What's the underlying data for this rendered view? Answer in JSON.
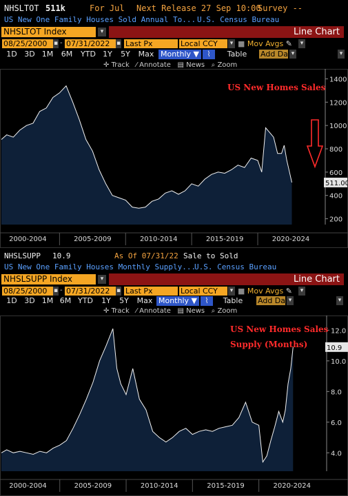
{
  "top": {
    "ticker": "NHSLTOT",
    "value": "511k",
    "for": "For Jul",
    "next_release": "Next Release 27 Sep 10:00",
    "survey": "Survey --",
    "description": "US New One Family Houses Sold Annual To...",
    "source": "U.S. Census Bureau",
    "index": "NHSLTOT Index",
    "chart_type": "Line Chart",
    "start_date": "08/25/2000",
    "end_date": "07/31/2022",
    "price_field": "Last Px",
    "currency": "Local CCY",
    "mov_avgs": "Mov Avgs",
    "range_buttons": [
      "1D",
      "3D",
      "1M",
      "6M",
      "YTD",
      "1Y",
      "5Y",
      "Max"
    ],
    "frequency": "Monthly",
    "table_label": "Table",
    "add_data": "Add Da",
    "tools": [
      "Track",
      "Annotate",
      "News",
      "Zoom"
    ]
  },
  "bottom": {
    "ticker": "NHSLSUPP",
    "value": "10.9",
    "as_of": "As Of 07/31/22",
    "sale": "Sale to Sold",
    "description": "US New One Family Houses Monthly Supply...",
    "source": "U.S. Census Bureau",
    "index": "NHSLSUPP Index",
    "chart_type": "Line Chart",
    "start_date": "08/25/2000",
    "end_date": "07/31/2022",
    "price_field": "Last Px",
    "currency": "Local CCY",
    "mov_avgs": "Mov Avgs",
    "range_buttons": [
      "1D",
      "3D",
      "1M",
      "6M",
      "YTD",
      "1Y",
      "5Y",
      "Max"
    ],
    "frequency": "Monthly",
    "table_label": "Table",
    "add_data": "Add Da",
    "tools": [
      "Track",
      "Annotate",
      "News",
      "Zoom"
    ]
  },
  "colors": {
    "accent_orange": "#f5a623",
    "header_red": "#8b1414",
    "selected_blue": "#2e56c8",
    "area_fill": "#0e2038",
    "annotation_red": "#ff2b2b"
  },
  "chart_data": [
    {
      "type": "area",
      "annotation": "US New Homes Sales",
      "last_value_label": "511.00",
      "x_ticks": [
        "2000-2004",
        "2005-2009",
        "2010-2014",
        "2015-2019",
        "2020-2024"
      ],
      "y_ticks": [
        "1400",
        "1200",
        "1000",
        "800",
        "600",
        "400",
        "200"
      ],
      "ylim": [
        150,
        1450
      ],
      "x": [
        2000.6,
        2001.0,
        2001.5,
        2002.0,
        2002.5,
        2003.0,
        2003.5,
        2004.0,
        2004.5,
        2005.0,
        2005.5,
        2006.0,
        2006.5,
        2007.0,
        2007.5,
        2008.0,
        2008.5,
        2009.0,
        2009.5,
        2010.0,
        2010.5,
        2011.0,
        2011.5,
        2012.0,
        2012.5,
        2013.0,
        2013.5,
        2014.0,
        2014.5,
        2015.0,
        2015.5,
        2016.0,
        2016.5,
        2017.0,
        2017.5,
        2018.0,
        2018.5,
        2019.0,
        2019.5,
        2020.0,
        2020.3,
        2020.6,
        2020.9,
        2021.2,
        2021.5,
        2021.8,
        2022.0,
        2022.2,
        2022.4,
        2022.58
      ],
      "values": [
        880,
        920,
        900,
        960,
        1000,
        1020,
        1120,
        1150,
        1240,
        1280,
        1340,
        1200,
        1050,
        880,
        780,
        620,
        500,
        400,
        380,
        360,
        300,
        290,
        300,
        350,
        370,
        420,
        440,
        410,
        440,
        500,
        480,
        540,
        580,
        600,
        590,
        620,
        660,
        640,
        720,
        700,
        600,
        980,
        940,
        900,
        760,
        760,
        830,
        700,
        600,
        511
      ]
    },
    {
      "type": "area",
      "annotation": [
        "US New Homes Sales",
        "Supply (Months)"
      ],
      "last_value_label": "10.9",
      "x_ticks": [
        "2000-2004",
        "2005-2009",
        "2010-2014",
        "2015-2019",
        "2020-2024"
      ],
      "y_ticks": [
        "12.0",
        "10.0",
        "8.0",
        "6.0",
        "4.0"
      ],
      "ylim": [
        2.8,
        12.6
      ],
      "x": [
        2000.6,
        2001.0,
        2001.5,
        2002.0,
        2002.5,
        2003.0,
        2003.5,
        2004.0,
        2004.5,
        2005.0,
        2005.5,
        2006.0,
        2006.5,
        2007.0,
        2007.5,
        2008.0,
        2008.5,
        2009.0,
        2009.3,
        2009.6,
        2010.0,
        2010.5,
        2011.0,
        2011.5,
        2012.0,
        2012.5,
        2013.0,
        2013.5,
        2014.0,
        2014.5,
        2015.0,
        2015.5,
        2016.0,
        2016.5,
        2017.0,
        2017.5,
        2018.0,
        2018.5,
        2019.0,
        2019.5,
        2020.0,
        2020.3,
        2020.6,
        2020.9,
        2021.2,
        2021.5,
        2021.8,
        2022.0,
        2022.2,
        2022.4,
        2022.58
      ],
      "values": [
        4.0,
        4.2,
        4.0,
        4.1,
        4.0,
        3.9,
        4.1,
        4.0,
        4.3,
        4.5,
        4.8,
        5.6,
        6.5,
        7.5,
        8.6,
        10.0,
        11.0,
        12.1,
        9.5,
        8.5,
        7.8,
        9.5,
        7.5,
        6.8,
        5.4,
        5.0,
        4.7,
        5.0,
        5.4,
        5.6,
        5.2,
        5.4,
        5.5,
        5.4,
        5.6,
        5.7,
        5.8,
        6.3,
        7.3,
        6.0,
        5.8,
        3.4,
        3.8,
        4.8,
        5.7,
        6.7,
        6.0,
        6.8,
        8.5,
        9.5,
        10.9
      ]
    }
  ]
}
